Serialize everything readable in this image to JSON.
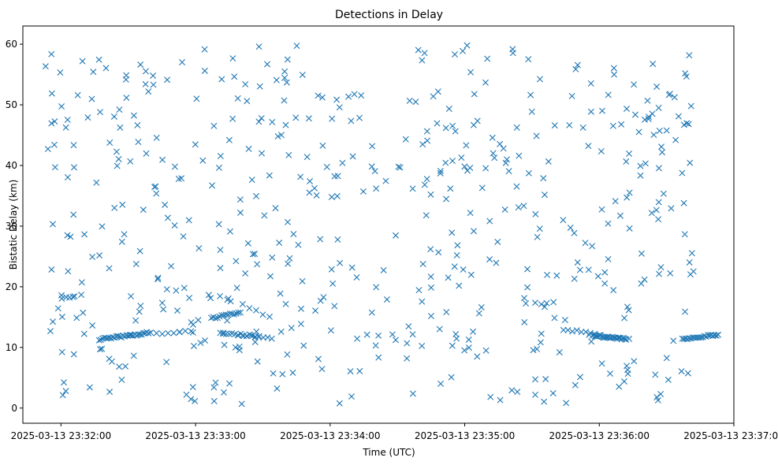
{
  "chart_data": {
    "type": "scatter",
    "title": "Detections in Delay",
    "xlabel": "Time (UTC)",
    "ylabel": "Bistatic Delay (km)",
    "marker": "x",
    "color": "#1f77b4",
    "grid": false,
    "x_range": [
      "2025-03-13 23:31:43",
      "2025-03-13 23:37:00"
    ],
    "ylim": [
      -2.5,
      63
    ],
    "x_ticks": [
      "2025-03-13 23:32:00",
      "2025-03-13 23:33:00",
      "2025-03-13 23:34:00",
      "2025-03-13 23:35:00",
      "2025-03-13 23:36:00",
      "2025-03-13 23:37:00"
    ],
    "y_ticks": [
      0,
      10,
      20,
      30,
      40,
      50,
      60
    ],
    "tracks": [
      {
        "start": "2025-03-13 23:32:17",
        "end": "2025-03-13 23:32:39",
        "y_start": 11.3,
        "y_end": 12.4,
        "count": 30
      },
      {
        "start": "2025-03-13 23:32:40",
        "end": "2025-03-13 23:32:58",
        "y_start": 12.3,
        "y_end": 12.6,
        "count": 8
      },
      {
        "start": "2025-03-13 23:33:07",
        "end": "2025-03-13 23:33:20",
        "y_start": 14.8,
        "y_end": 15.8,
        "count": 15
      },
      {
        "start": "2025-03-13 23:33:11",
        "end": "2025-03-13 23:33:28",
        "y_start": 12.3,
        "y_end": 11.9,
        "count": 14
      },
      {
        "start": "2025-03-13 23:33:21",
        "end": "2025-03-13 23:33:33",
        "y_start": 17.0,
        "y_end": 15.0,
        "count": 5
      },
      {
        "start": "2025-03-13 23:33:19",
        "end": "2025-03-13 23:33:34",
        "y_start": 12.0,
        "y_end": 11.6,
        "count": 9
      },
      {
        "start": "2025-03-13 23:35:44",
        "end": "2025-03-13 23:35:58",
        "y_start": 13.0,
        "y_end": 12.2,
        "count": 8
      },
      {
        "start": "2025-03-13 23:35:57",
        "end": "2025-03-13 23:36:12",
        "y_start": 12.0,
        "y_end": 11.4,
        "count": 30
      },
      {
        "start": "2025-03-13 23:36:37",
        "end": "2025-03-13 23:36:53",
        "y_start": 11.4,
        "y_end": 12.1,
        "count": 22
      }
    ],
    "scatter_points": 560,
    "scatter_seed": 20250313
  }
}
